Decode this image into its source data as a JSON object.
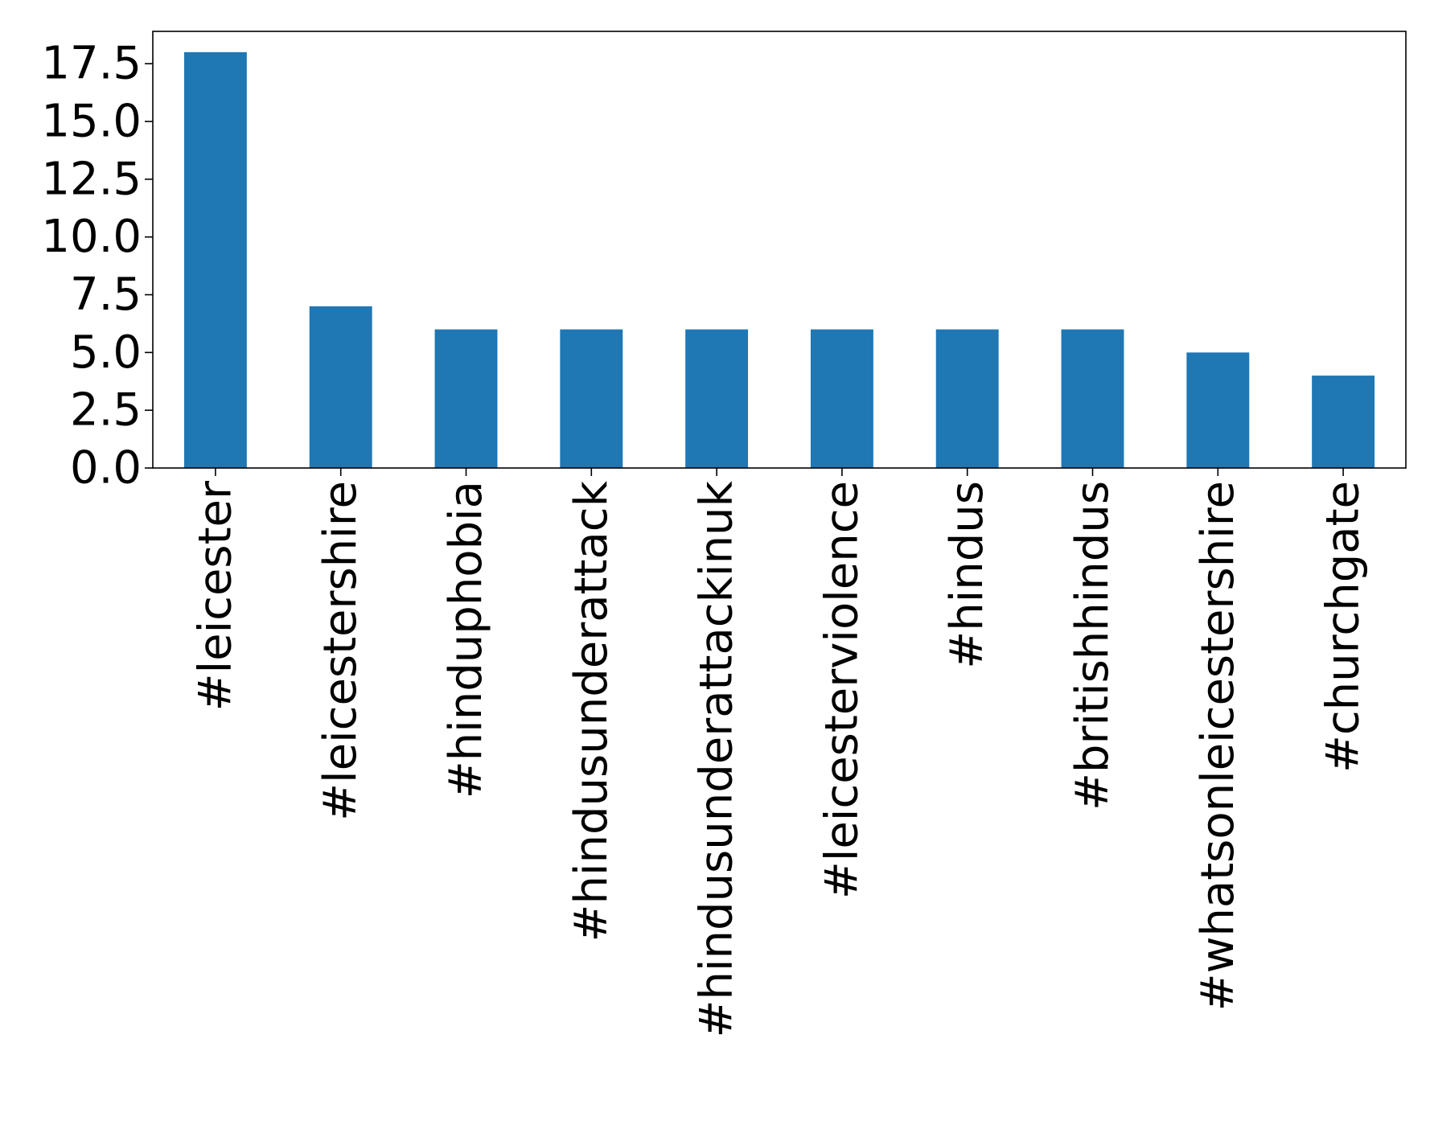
{
  "chart_data": {
    "type": "bar",
    "title": "",
    "xlabel": "",
    "ylabel": "",
    "categories": [
      "#leicester",
      "#leicestershire",
      "#hinduphobia",
      "#hindusunderattack",
      "#hindusunderattackinuk",
      "#leicesterviolence",
      "#hindus",
      "#britishhindus",
      "#whatsonleicestershire",
      "#churchgate"
    ],
    "values": [
      18,
      7,
      6,
      6,
      6,
      6,
      6,
      6,
      5,
      4
    ],
    "ylim": [
      0,
      18.9
    ],
    "yticks": [
      0.0,
      2.5,
      5.0,
      7.5,
      10.0,
      12.5,
      15.0,
      17.5
    ],
    "ytick_labels": [
      "0.0",
      "2.5",
      "5.0",
      "7.5",
      "10.0",
      "12.5",
      "15.0",
      "17.5"
    ],
    "bar_color": "#1f77b4",
    "grid": false,
    "legend": "none"
  }
}
